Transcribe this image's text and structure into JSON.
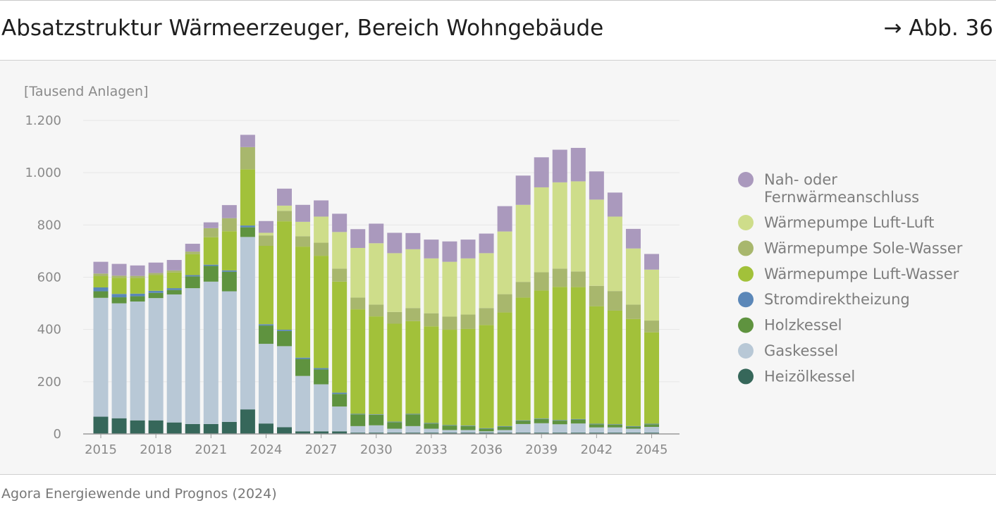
{
  "header": {
    "title": "Absatzstruktur Wärmeerzeuger, Bereich Wohngebäude",
    "figure_ref": "→ Abb. 36"
  },
  "footer": {
    "source": "Agora Energiewende und Prognos (2024)"
  },
  "chart_data": {
    "type": "bar",
    "stacked": true,
    "unit_label": "[Tausend Anlagen]",
    "ylim": [
      0,
      1200
    ],
    "yticks": [
      0,
      200,
      400,
      600,
      800,
      1000,
      1200
    ],
    "ytick_labels": [
      "0",
      "200",
      "400",
      "600",
      "800",
      "1.000",
      "1.200"
    ],
    "grid": true,
    "legend_position": "right",
    "categories": [
      "2015",
      "2016",
      "2017",
      "2018",
      "2019",
      "2020",
      "2021",
      "2022",
      "2023",
      "2024",
      "2025",
      "2026",
      "2027",
      "2028",
      "2029",
      "2030",
      "2031",
      "2032",
      "2033",
      "2034",
      "2035",
      "2036",
      "2037",
      "2038",
      "2039",
      "2040",
      "2041",
      "2042",
      "2043",
      "2044",
      "2045"
    ],
    "xtick_labels": [
      "2015",
      "",
      "",
      "2018",
      "",
      "",
      "2021",
      "",
      "",
      "2024",
      "",
      "",
      "2027",
      "",
      "",
      "2030",
      "",
      "",
      "2033",
      "",
      "",
      "2036",
      "",
      "",
      "2039",
      "",
      "",
      "2042",
      "",
      "",
      "2045"
    ],
    "series": [
      {
        "name": "Heizölkessel",
        "color": "#36675a",
        "values": [
          66,
          60,
          52,
          52,
          44,
          38,
          38,
          46,
          94,
          40,
          26,
          10,
          10,
          10,
          5,
          5,
          5,
          5,
          5,
          5,
          5,
          5,
          5,
          5,
          5,
          5,
          5,
          5,
          5,
          5,
          5
        ]
      },
      {
        "name": "Gaskessel",
        "color": "#b8c8d6",
        "values": [
          455,
          440,
          455,
          468,
          490,
          520,
          545,
          500,
          660,
          305,
          310,
          212,
          180,
          95,
          25,
          28,
          15,
          25,
          15,
          10,
          10,
          5,
          10,
          33,
          36,
          32,
          35,
          20,
          20,
          15,
          22
        ]
      },
      {
        "name": "Holzkessel",
        "color": "#5f933f",
        "values": [
          25,
          23,
          20,
          20,
          17,
          45,
          60,
          75,
          37,
          70,
          58,
          65,
          57,
          48,
          45,
          40,
          25,
          45,
          20,
          17,
          15,
          10,
          13,
          12,
          16,
          14,
          15,
          12,
          10,
          8,
          10
        ]
      },
      {
        "name": "Stromdirektheizung",
        "color": "#5b87b8",
        "values": [
          15,
          13,
          10,
          8,
          7,
          5,
          5,
          5,
          7,
          5,
          5,
          5,
          5,
          5,
          2,
          2,
          2,
          2,
          2,
          2,
          2,
          2,
          2,
          2,
          2,
          2,
          2,
          2,
          2,
          2,
          2
        ]
      },
      {
        "name": "Wärmepumpe Luft-Wasser",
        "color": "#a2c13a",
        "values": [
          43,
          62,
          60,
          60,
          60,
          80,
          105,
          150,
          215,
          300,
          415,
          425,
          430,
          425,
          400,
          375,
          375,
          355,
          370,
          365,
          370,
          395,
          435,
          470,
          490,
          510,
          505,
          450,
          435,
          410,
          350
        ]
      },
      {
        "name": "Wärmepumpe Sole-Wasser",
        "color": "#a8b76d",
        "values": [
          10,
          8,
          8,
          8,
          8,
          10,
          35,
          50,
          85,
          40,
          40,
          40,
          50,
          50,
          45,
          45,
          45,
          50,
          50,
          50,
          55,
          65,
          70,
          60,
          70,
          70,
          60,
          78,
          75,
          55,
          45
        ]
      },
      {
        "name": "Wärmepumpe Luft-Luft",
        "color": "#cedd8a",
        "values": [
          0,
          0,
          0,
          0,
          0,
          0,
          0,
          0,
          0,
          10,
          20,
          55,
          100,
          140,
          190,
          235,
          225,
          225,
          210,
          210,
          215,
          210,
          240,
          295,
          325,
          330,
          345,
          330,
          285,
          215,
          195
        ]
      },
      {
        "name": "Nah- oder Fernwärmeanschluss",
        "legend_lines": [
          "Nah- oder",
          "Fernwärmeanschluss"
        ],
        "color": "#aa99bd",
        "values": [
          45,
          45,
          40,
          40,
          40,
          30,
          22,
          50,
          47,
          45,
          65,
          65,
          62,
          70,
          72,
          75,
          78,
          62,
          72,
          78,
          72,
          75,
          97,
          112,
          115,
          125,
          128,
          108,
          92,
          75,
          60
        ]
      }
    ]
  }
}
